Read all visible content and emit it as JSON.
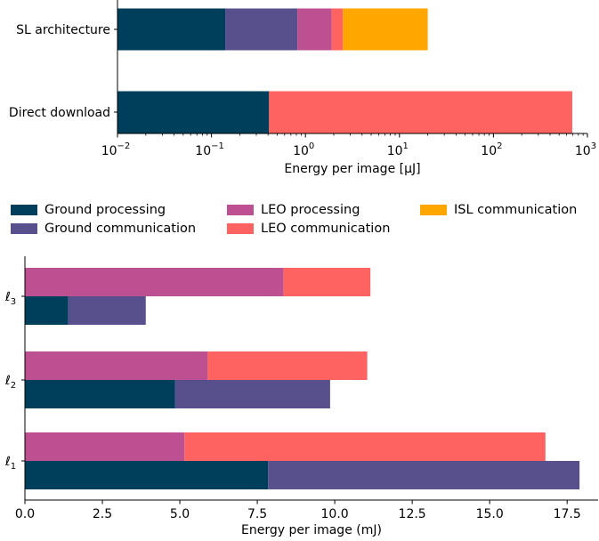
{
  "chart_data": [
    {
      "type": "bar",
      "orientation": "horizontal",
      "stacked": true,
      "xscale": "log",
      "xlabel": "Energy per image [µJ]",
      "xlim": [
        0.01,
        1000
      ],
      "xticks": [
        {
          "base": "10",
          "exp": "−2"
        },
        {
          "base": "10",
          "exp": "−1"
        },
        {
          "base": "10",
          "exp": "0"
        },
        {
          "base": "10",
          "exp": "1"
        },
        {
          "base": "10",
          "exp": "2"
        },
        {
          "base": "10",
          "exp": "3"
        }
      ],
      "tick_values": [
        0.01,
        0.1,
        1,
        10,
        100,
        1000
      ],
      "categories": [
        "SL architecture",
        "Direct download"
      ],
      "segments": [
        {
          "category": "SL architecture",
          "series": "Ground processing",
          "start": 0.01,
          "end": 0.14
        },
        {
          "category": "SL architecture",
          "series": "Ground communication",
          "start": 0.14,
          "end": 0.82
        },
        {
          "category": "SL architecture",
          "series": "LEO processing",
          "start": 0.82,
          "end": 1.9
        },
        {
          "category": "SL architecture",
          "series": "LEO communication",
          "start": 1.9,
          "end": 2.5
        },
        {
          "category": "SL architecture",
          "series": "ISL communication",
          "start": 2.5,
          "end": 20
        },
        {
          "category": "Direct download",
          "series": "Ground processing",
          "start": 0.01,
          "end": 0.41
        },
        {
          "category": "Direct download",
          "series": "LEO communication",
          "start": 0.41,
          "end": 690
        }
      ],
      "grid": false
    },
    {
      "type": "bar",
      "orientation": "horizontal",
      "grouped_stacked": true,
      "xlabel": "Energy per image (mJ)",
      "xlim": [
        0,
        18.5
      ],
      "xticks": [
        "0.0",
        "2.5",
        "5.0",
        "7.5",
        "10.0",
        "12.5",
        "15.0",
        "17.5"
      ],
      "tick_values": [
        0,
        2.5,
        5,
        7.5,
        10,
        12.5,
        15,
        17.5
      ],
      "categories": [
        "ℓ3",
        "ℓ2",
        "ℓ1"
      ],
      "category_labels": [
        {
          "main": "ℓ",
          "sub": "3"
        },
        {
          "main": "ℓ",
          "sub": "2"
        },
        {
          "main": "ℓ",
          "sub": "1"
        }
      ],
      "groups": {
        "leo": [
          {
            "category": "ℓ3",
            "processing": 8.35,
            "communication": 2.8
          },
          {
            "category": "ℓ2",
            "processing": 5.9,
            "communication": 5.15
          },
          {
            "category": "ℓ1",
            "processing": 5.15,
            "communication": 11.65
          }
        ],
        "ground": [
          {
            "category": "ℓ3",
            "processing": 1.4,
            "communication": 2.5
          },
          {
            "category": "ℓ2",
            "processing": 4.85,
            "communication": 5.0
          },
          {
            "category": "ℓ1",
            "processing": 7.85,
            "communication": 10.05
          }
        ]
      },
      "grid": false
    }
  ],
  "legend": [
    {
      "label": "Ground processing",
      "color": "#003f5c"
    },
    {
      "label": "Ground communication",
      "color": "#58508d"
    },
    {
      "label": "LEO processing",
      "color": "#bc5090"
    },
    {
      "label": "LEO communication",
      "color": "#ff6361"
    },
    {
      "label": "ISL communication",
      "color": "#ffa600"
    }
  ],
  "colors": {
    "Ground processing": "#003f5c",
    "Ground communication": "#58508d",
    "LEO processing": "#bc5090",
    "LEO communication": "#ff6361",
    "ISL communication": "#ffa600"
  }
}
